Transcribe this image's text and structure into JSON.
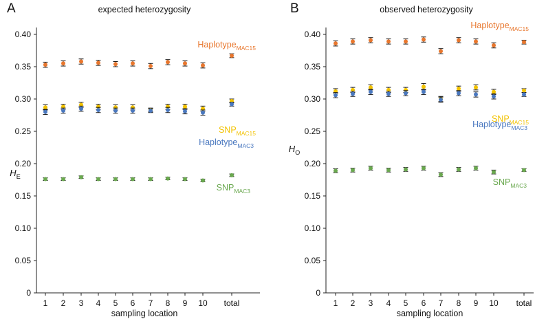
{
  "chart_data": [
    {
      "panel_letter": "A",
      "type": "scatter",
      "title": "expected heterozygosity",
      "ylabel_main": "H",
      "ylabel_sub": "E",
      "xlabel": "sampling location",
      "categories": [
        "1",
        "2",
        "3",
        "4",
        "5",
        "6",
        "7",
        "8",
        "9",
        "10",
        "total"
      ],
      "ylim": [
        0,
        0.4
      ],
      "yticks": [
        "0",
        "0.05",
        "0.10",
        "0.15",
        "0.20",
        "0.25",
        "0.30",
        "0.35",
        "0.40"
      ],
      "series": [
        {
          "key": "haplotype-mac15",
          "label_main": "Haplotype",
          "label_sub": "MAC15",
          "color": "#e8772e",
          "values": [
            0.353,
            0.355,
            0.358,
            0.356,
            0.354,
            0.355,
            0.351,
            0.357,
            0.355,
            0.352,
            0.367
          ],
          "errors": [
            0.004,
            0.004,
            0.004,
            0.004,
            0.004,
            0.004,
            0.004,
            0.004,
            0.004,
            0.004,
            0.003
          ]
        },
        {
          "key": "snp-mac15",
          "label_main": "SNP",
          "label_sub": "MAC15",
          "color": "#f2c200",
          "values": [
            0.287,
            0.288,
            0.291,
            0.288,
            0.287,
            0.287,
            0.283,
            0.288,
            0.288,
            0.285,
            0.297
          ],
          "errors": [
            0.004,
            0.004,
            0.004,
            0.004,
            0.004,
            0.004,
            0.003,
            0.004,
            0.004,
            0.004,
            0.003
          ]
        },
        {
          "key": "haplotype-mac3",
          "label_main": "Haplotype",
          "label_sub": "MAC3",
          "color": "#4a78bf",
          "values": [
            0.28,
            0.282,
            0.285,
            0.283,
            0.282,
            0.282,
            0.282,
            0.283,
            0.281,
            0.279,
            0.292
          ],
          "errors": [
            0.004,
            0.004,
            0.004,
            0.004,
            0.004,
            0.004,
            0.003,
            0.004,
            0.004,
            0.004,
            0.003
          ]
        },
        {
          "key": "snp-mac3",
          "label_main": "SNP",
          "label_sub": "MAC3",
          "color": "#6aa84f",
          "values": [
            0.176,
            0.176,
            0.179,
            0.176,
            0.176,
            0.176,
            0.176,
            0.177,
            0.176,
            0.174,
            0.182
          ],
          "errors": [
            0.002,
            0.002,
            0.002,
            0.002,
            0.002,
            0.002,
            0.002,
            0.002,
            0.002,
            0.002,
            0.002
          ]
        }
      ]
    },
    {
      "panel_letter": "B",
      "type": "scatter",
      "title": "observed heterozygosity",
      "ylabel_main": "H",
      "ylabel_sub": "O",
      "xlabel": "sampling location",
      "categories": [
        "1",
        "2",
        "3",
        "4",
        "5",
        "6",
        "7",
        "8",
        "9",
        "10",
        "total"
      ],
      "ylim": [
        0,
        0.4
      ],
      "yticks": [
        "0",
        "0.05",
        "0.10",
        "0.15",
        "0.20",
        "0.25",
        "0.30",
        "0.35",
        "0.40"
      ],
      "series": [
        {
          "key": "haplotype-mac15",
          "label_main": "Haplotype",
          "label_sub": "MAC15",
          "color": "#e8772e",
          "values": [
            0.386,
            0.389,
            0.391,
            0.389,
            0.389,
            0.392,
            0.374,
            0.391,
            0.389,
            0.383,
            0.388
          ],
          "errors": [
            0.004,
            0.004,
            0.004,
            0.004,
            0.004,
            0.004,
            0.004,
            0.004,
            0.004,
            0.004,
            0.003
          ]
        },
        {
          "key": "snp-mac15",
          "label_main": "SNP",
          "label_sub": "MAC15",
          "color": "#f2c200",
          "values": [
            0.312,
            0.314,
            0.318,
            0.314,
            0.314,
            0.319,
            0.3,
            0.316,
            0.318,
            0.311,
            0.313
          ],
          "errors": [
            0.004,
            0.004,
            0.004,
            0.004,
            0.004,
            0.005,
            0.004,
            0.004,
            0.004,
            0.004,
            0.003
          ]
        },
        {
          "key": "haplotype-mac3",
          "label_main": "Haplotype",
          "label_sub": "MAC3",
          "color": "#4a78bf",
          "values": [
            0.306,
            0.308,
            0.311,
            0.308,
            0.309,
            0.311,
            0.299,
            0.309,
            0.307,
            0.304,
            0.307
          ],
          "errors": [
            0.004,
            0.004,
            0.004,
            0.004,
            0.004,
            0.004,
            0.004,
            0.004,
            0.004,
            0.004,
            0.003
          ]
        },
        {
          "key": "snp-mac3",
          "label_main": "SNP",
          "label_sub": "MAC3",
          "color": "#6aa84f",
          "values": [
            0.189,
            0.19,
            0.193,
            0.19,
            0.191,
            0.193,
            0.183,
            0.191,
            0.193,
            0.187,
            0.19
          ],
          "errors": [
            0.003,
            0.003,
            0.003,
            0.003,
            0.003,
            0.003,
            0.003,
            0.003,
            0.003,
            0.003,
            0.002
          ]
        }
      ]
    }
  ]
}
